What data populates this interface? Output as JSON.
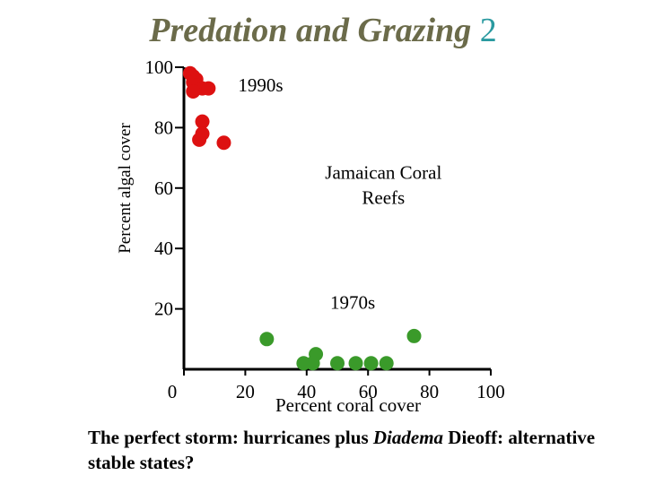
{
  "title": {
    "main": "Predation and Grazing",
    "number": "2"
  },
  "colors": {
    "red_points": "#dd1111",
    "green_points": "#3a9a2a",
    "axis": "#000000",
    "title": "#6b6b4a",
    "title_number": "#2a9aa0"
  },
  "chart_data": {
    "type": "scatter",
    "title": "",
    "xlabel": "Percent coral cover",
    "ylabel": "Percent algal cover",
    "xlim": [
      0,
      100
    ],
    "ylim": [
      0,
      100
    ],
    "x_ticks": [
      "0",
      "20",
      "40",
      "60",
      "80",
      "100"
    ],
    "y_ticks": [
      "20",
      "40",
      "60",
      "80",
      "100"
    ],
    "grid": false,
    "series": [
      {
        "name": "1990s",
        "color": "#dd1111",
        "points": [
          {
            "x": 2,
            "y": 98
          },
          {
            "x": 3,
            "y": 97
          },
          {
            "x": 4,
            "y": 96
          },
          {
            "x": 3,
            "y": 95
          },
          {
            "x": 4,
            "y": 94
          },
          {
            "x": 6,
            "y": 93
          },
          {
            "x": 8,
            "y": 93
          },
          {
            "x": 3,
            "y": 92
          },
          {
            "x": 6,
            "y": 82
          },
          {
            "x": 6,
            "y": 78
          },
          {
            "x": 5,
            "y": 76
          },
          {
            "x": 13,
            "y": 75
          }
        ]
      },
      {
        "name": "1970s",
        "color": "#3a9a2a",
        "points": [
          {
            "x": 27,
            "y": 10
          },
          {
            "x": 43,
            "y": 5
          },
          {
            "x": 39,
            "y": 2
          },
          {
            "x": 42,
            "y": 2
          },
          {
            "x": 50,
            "y": 2
          },
          {
            "x": 56,
            "y": 2
          },
          {
            "x": 61,
            "y": 2
          },
          {
            "x": 66,
            "y": 2
          },
          {
            "x": 75,
            "y": 11
          }
        ]
      }
    ],
    "annotations": [
      {
        "text": "1990s",
        "x": 25,
        "y": 92
      },
      {
        "text": "Jamaican Coral Reefs",
        "x": 65,
        "y": 63
      },
      {
        "text": "1970s",
        "x": 55,
        "y": 20
      }
    ]
  },
  "caption": {
    "part1": "The perfect storm: hurricanes plus ",
    "italic": "Diadema",
    "part2": " Dieoff: alternative stable states?"
  }
}
